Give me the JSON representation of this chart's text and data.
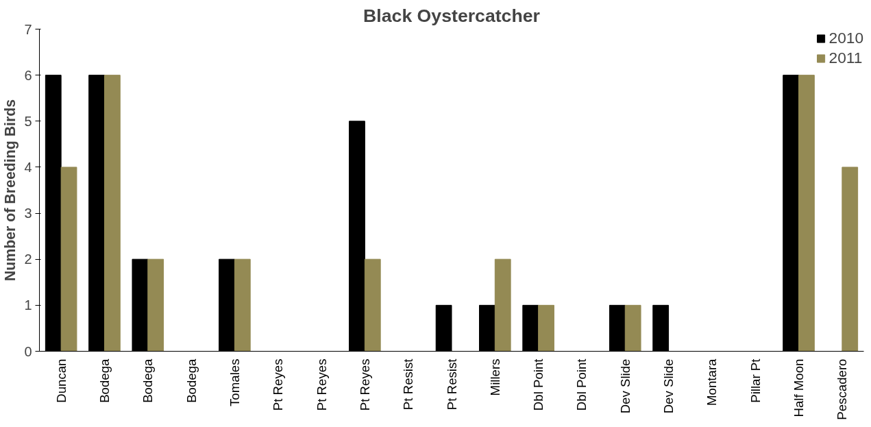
{
  "chart_data": {
    "type": "bar",
    "title": "Black Oystercatcher",
    "ylabel": "Number of Breeding Birds",
    "categories": [
      "Duncan",
      "Bodega",
      "Bodega",
      "Bodega",
      "Tomales",
      "Pt Reyes",
      "Pt Reyes",
      "Pt Reyes",
      "Pt Resist",
      "Pt Resist",
      "Millers",
      "Dbl Point",
      "Dbl Point",
      "Dev Slide",
      "Dev Slide",
      "Montara",
      "Pillar Pt",
      "Half Moon",
      "Pescadero"
    ],
    "series": [
      {
        "name": "2010",
        "color": "#000000",
        "values": [
          6,
          6,
          2,
          0,
          2,
          0,
          0,
          5,
          0,
          1,
          1,
          1,
          0,
          1,
          1,
          0,
          0,
          6,
          0
        ]
      },
      {
        "name": "2011",
        "color": "#948a54",
        "values": [
          4,
          6,
          2,
          0,
          2,
          0,
          0,
          2,
          0,
          0,
          2,
          1,
          0,
          1,
          0,
          0,
          0,
          6,
          4
        ]
      }
    ],
    "ylim": [
      0,
      7
    ],
    "yticks": [
      0,
      1,
      2,
      3,
      4,
      5,
      6,
      7
    ],
    "grid": false,
    "legend": "top right"
  }
}
